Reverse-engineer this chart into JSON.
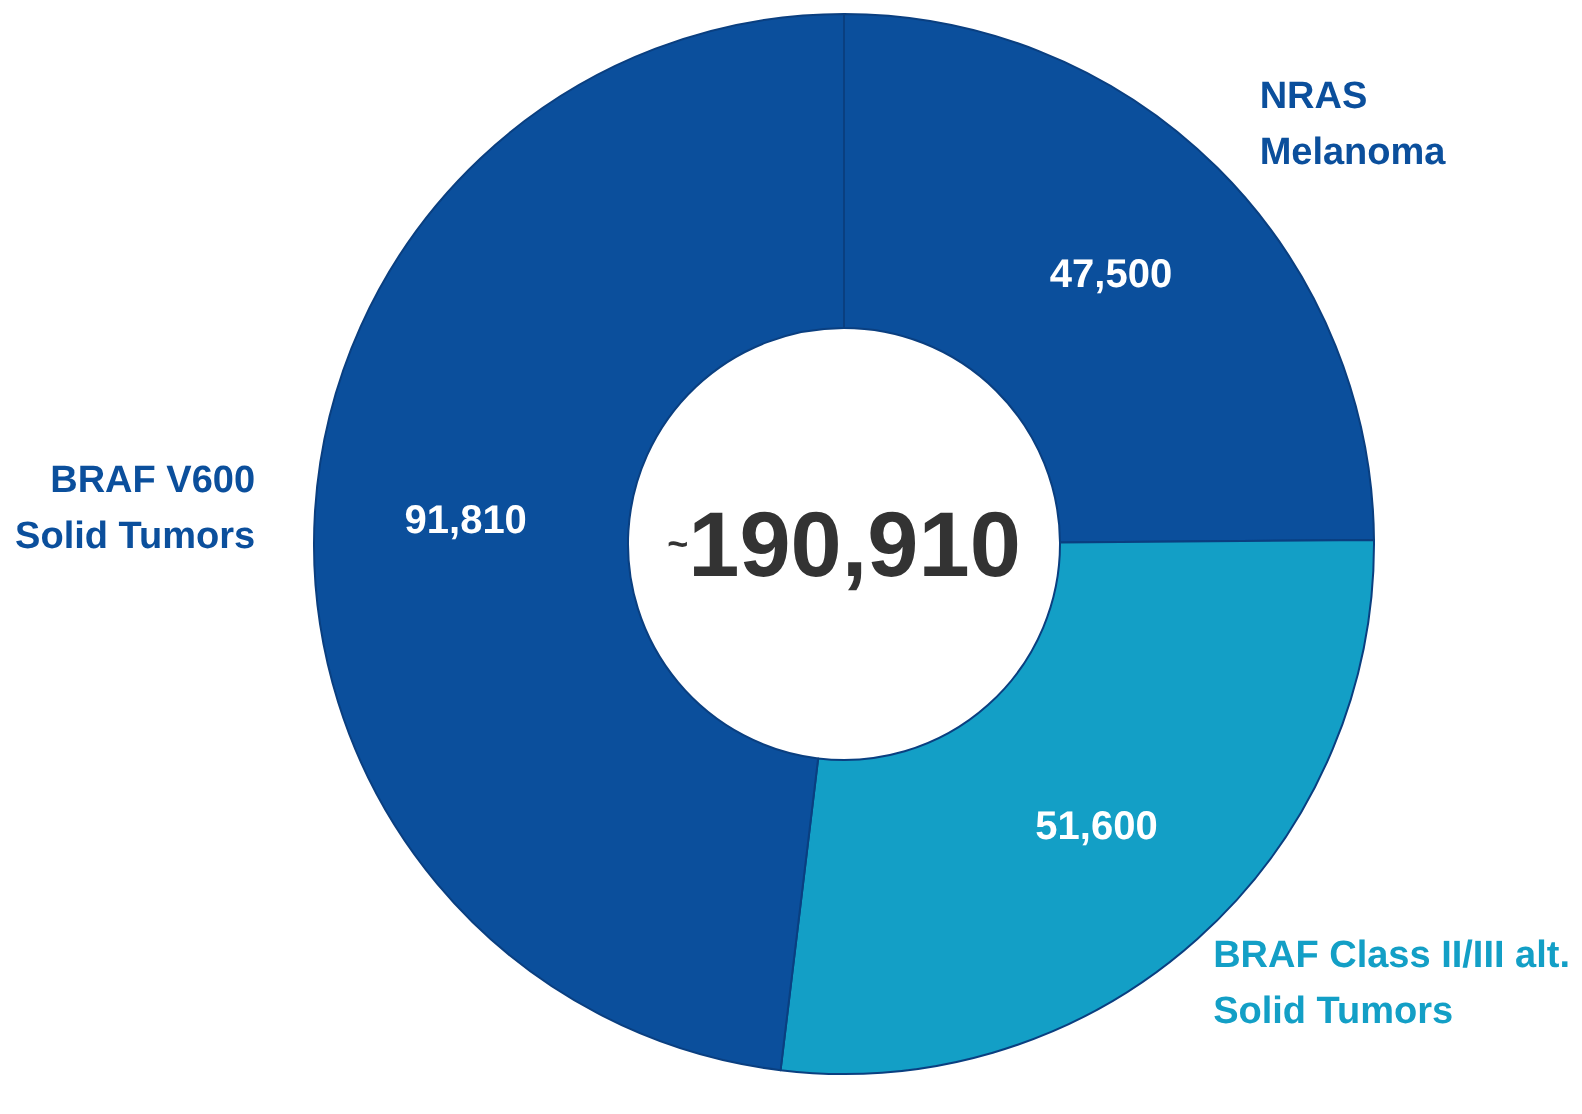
{
  "chart_data": {
    "type": "donut",
    "categories": [
      "NRAS\nMelanoma",
      "BRAF Class II/III alt.\nSolid Tumors",
      "BRAF V600\nSolid Tumors"
    ],
    "values": [
      47500,
      51600,
      91810
    ],
    "colors": [
      "#0b4f9c",
      "#139fc6",
      "#0b4f9c"
    ],
    "value_labels": [
      "47,500",
      "51,600",
      "91,810"
    ],
    "annotations": [
      "~190,910"
    ]
  }
}
